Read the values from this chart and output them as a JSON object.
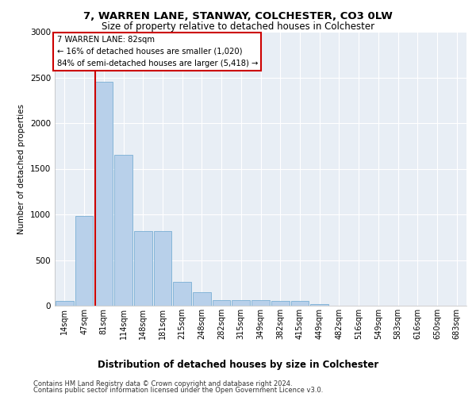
{
  "title_line1": "7, WARREN LANE, STANWAY, COLCHESTER, CO3 0LW",
  "title_line2": "Size of property relative to detached houses in Colchester",
  "xlabel": "Distribution of detached houses by size in Colchester",
  "ylabel": "Number of detached properties",
  "categories": [
    "14sqm",
    "47sqm",
    "81sqm",
    "114sqm",
    "148sqm",
    "181sqm",
    "215sqm",
    "248sqm",
    "282sqm",
    "315sqm",
    "349sqm",
    "382sqm",
    "415sqm",
    "449sqm",
    "482sqm",
    "516sqm",
    "549sqm",
    "583sqm",
    "616sqm",
    "650sqm",
    "683sqm"
  ],
  "values": [
    50,
    980,
    2450,
    1650,
    820,
    820,
    265,
    150,
    65,
    65,
    65,
    55,
    55,
    20,
    0,
    0,
    0,
    0,
    0,
    0,
    0
  ],
  "bar_color": "#b8d0ea",
  "bar_edge_color": "#7aafd4",
  "vline_x": 1.575,
  "property_label": "7 WARREN LANE: 82sqm",
  "annotation_line2": "← 16% of detached houses are smaller (1,020)",
  "annotation_line3": "84% of semi-detached houses are larger (5,418) →",
  "annotation_box_facecolor": "#ffffff",
  "annotation_box_edgecolor": "#cc0000",
  "vline_color": "#cc0000",
  "ylim": [
    0,
    3000
  ],
  "yticks": [
    0,
    500,
    1000,
    1500,
    2000,
    2500,
    3000
  ],
  "grid_color": "#ffffff",
  "bg_color": "#e8eef5",
  "footer_line1": "Contains HM Land Registry data © Crown copyright and database right 2024.",
  "footer_line2": "Contains public sector information licensed under the Open Government Licence v3.0."
}
